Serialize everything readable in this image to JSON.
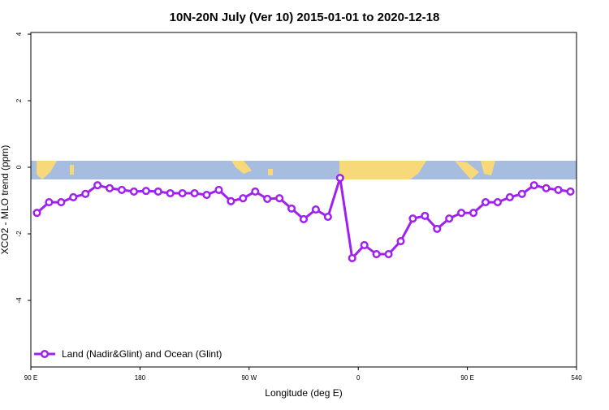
{
  "chart_data": {
    "type": "line",
    "title": "10N-20N July (Ver 10)   2015-01-01 to 2020-12-18",
    "x_label": "Longitude (deg E)",
    "y_label": "XCO2 - MLO trend (ppm)",
    "xlim": [
      90,
      540
    ],
    "ylim": [
      -6,
      4.05
    ],
    "xticks": [
      {
        "value": 90,
        "label": "90 E"
      },
      180,
      {
        "value": 270,
        "label": "90 W"
      },
      {
        "value": 360,
        "label": "0"
      },
      {
        "value": 450,
        "label": "90 E"
      },
      540
    ],
    "yticks": [
      -4,
      -2,
      0,
      2,
      4
    ],
    "legend": "bottom-left",
    "x": [
      95,
      105,
      115,
      125,
      135,
      145,
      155,
      165,
      175,
      185,
      195,
      205,
      215,
      225,
      235,
      245,
      255,
      265,
      275,
      285,
      295,
      305,
      315,
      325,
      335,
      345,
      355,
      365,
      375,
      385,
      395,
      405,
      415,
      425,
      435,
      445,
      455,
      465,
      475,
      485,
      495,
      505,
      515,
      525,
      535
    ],
    "series": [
      {
        "name": "Land (Nadir&Glint) and Ocean (Glint)",
        "color": "#a020f0",
        "values": [
          -1.37,
          -1.05,
          -1.05,
          -0.9,
          -0.8,
          -0.54,
          -0.63,
          -0.68,
          -0.73,
          -0.71,
          -0.73,
          -0.78,
          -0.78,
          -0.78,
          -0.83,
          -0.68,
          -1.02,
          -0.93,
          -0.73,
          -0.95,
          -0.93,
          -1.24,
          -1.56,
          -1.27,
          -1.49,
          -0.32,
          -2.73,
          -2.34,
          -2.61,
          -2.61,
          -2.22,
          -1.54,
          -1.46,
          -1.85,
          -1.54,
          -1.37,
          -1.37,
          -1.05,
          -1.05,
          -0.9,
          -0.8,
          -0.54,
          -0.63,
          -0.68,
          -0.73
        ]
      }
    ]
  }
}
